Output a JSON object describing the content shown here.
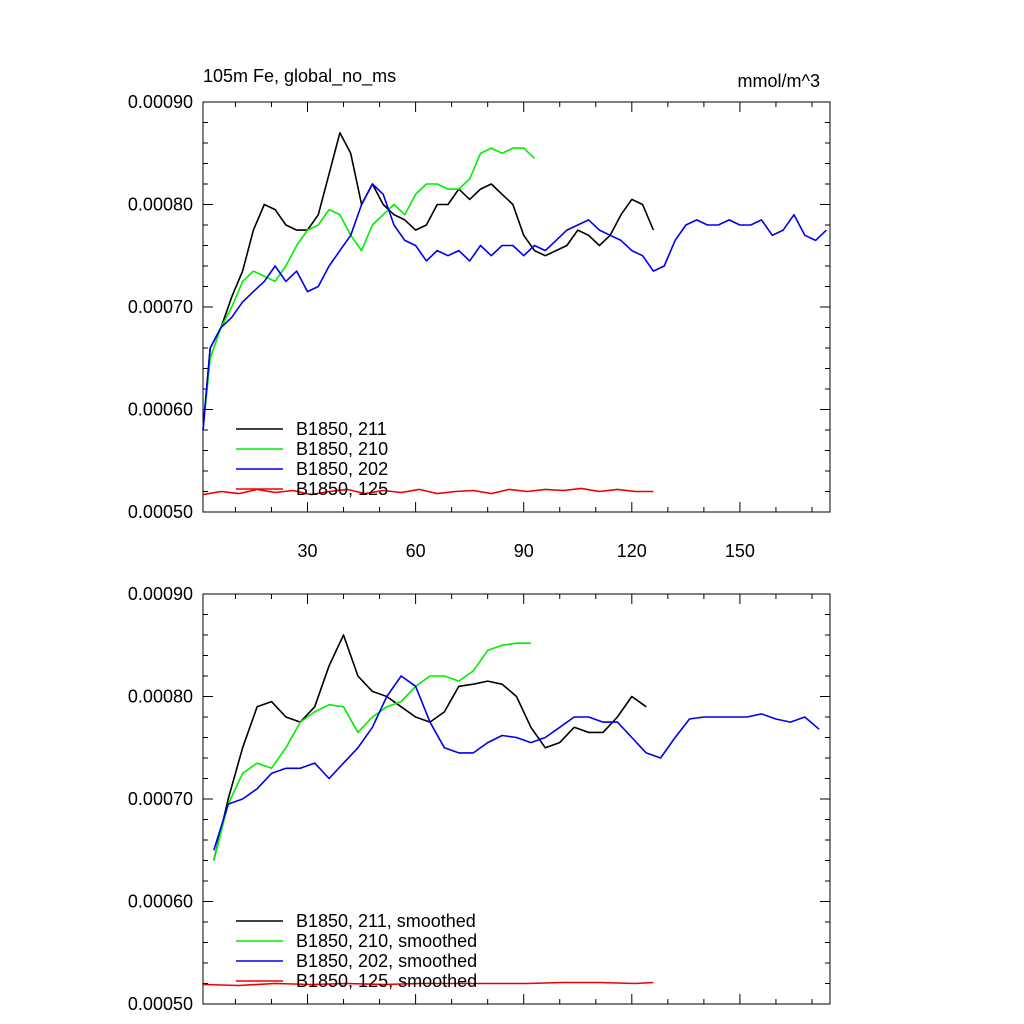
{
  "chart_data": [
    {
      "type": "line",
      "title": "105m Fe, global_no_ms",
      "units_label": "mmol/m^3",
      "xlim": [
        1,
        175
      ],
      "ylim": [
        0.0005,
        0.0009
      ],
      "y_ticks": [
        "0.00050",
        "0.00060",
        "0.00070",
        "0.00080",
        "0.00090"
      ],
      "x_ticks": [
        "30",
        "60",
        "90",
        "120",
        "150"
      ],
      "legend_position": "bottom-left",
      "series": [
        {
          "name": "B1850, 211",
          "color": "#000000",
          "x": [
            1,
            3,
            6,
            9,
            12,
            15,
            18,
            21,
            24,
            27,
            30,
            33,
            36,
            39,
            42,
            45,
            48,
            51,
            54,
            57,
            60,
            63,
            66,
            69,
            72,
            75,
            78,
            81,
            84,
            87,
            90,
            93,
            96,
            99,
            102,
            105,
            108,
            111,
            114,
            117,
            120,
            123,
            126
          ],
          "y": [
            0.00058,
            0.00066,
            0.00068,
            0.00071,
            0.000735,
            0.000775,
            0.0008,
            0.000795,
            0.00078,
            0.000775,
            0.000775,
            0.00079,
            0.00083,
            0.00087,
            0.00085,
            0.0008,
            0.00082,
            0.0008,
            0.00079,
            0.000785,
            0.000775,
            0.00078,
            0.0008,
            0.0008,
            0.000815,
            0.000805,
            0.000815,
            0.00082,
            0.00081,
            0.0008,
            0.00077,
            0.000755,
            0.00075,
            0.000755,
            0.00076,
            0.000775,
            0.00077,
            0.00076,
            0.00077,
            0.00079,
            0.000805,
            0.0008,
            0.000775
          ]
        },
        {
          "name": "B1850, 210",
          "color": "#00ee00",
          "x": [
            1,
            3,
            6,
            9,
            12,
            15,
            18,
            21,
            24,
            27,
            30,
            33,
            36,
            39,
            42,
            45,
            48,
            51,
            54,
            57,
            60,
            63,
            66,
            69,
            72,
            75,
            78,
            81,
            84,
            87,
            90,
            93
          ],
          "y": [
            0.00058,
            0.00065,
            0.00068,
            0.0007,
            0.000725,
            0.000735,
            0.00073,
            0.000725,
            0.00074,
            0.00076,
            0.000775,
            0.00078,
            0.000795,
            0.00079,
            0.00077,
            0.000755,
            0.00078,
            0.00079,
            0.0008,
            0.00079,
            0.00081,
            0.00082,
            0.00082,
            0.000815,
            0.000815,
            0.000825,
            0.00085,
            0.000855,
            0.00085,
            0.000855,
            0.000855,
            0.000845
          ]
        },
        {
          "name": "B1850, 202",
          "color": "#0000ee",
          "x": [
            1,
            3,
            6,
            9,
            12,
            15,
            18,
            21,
            24,
            27,
            30,
            33,
            36,
            39,
            42,
            45,
            48,
            51,
            54,
            57,
            60,
            63,
            66,
            69,
            72,
            75,
            78,
            81,
            84,
            87,
            90,
            93,
            96,
            99,
            102,
            105,
            108,
            111,
            114,
            117,
            120,
            123,
            126,
            129,
            132,
            135,
            138,
            141,
            144,
            147,
            150,
            153,
            156,
            159,
            162,
            165,
            168,
            171,
            174
          ],
          "y": [
            0.00058,
            0.00066,
            0.00068,
            0.00069,
            0.000705,
            0.000715,
            0.000725,
            0.00074,
            0.000725,
            0.000735,
            0.000715,
            0.00072,
            0.00074,
            0.000755,
            0.00077,
            0.0008,
            0.00082,
            0.00081,
            0.00078,
            0.000765,
            0.00076,
            0.000745,
            0.000755,
            0.00075,
            0.000755,
            0.000745,
            0.00076,
            0.00075,
            0.00076,
            0.00076,
            0.00075,
            0.00076,
            0.000755,
            0.000765,
            0.000775,
            0.00078,
            0.000785,
            0.000775,
            0.00077,
            0.000765,
            0.000755,
            0.00075,
            0.000735,
            0.00074,
            0.000765,
            0.00078,
            0.000785,
            0.00078,
            0.00078,
            0.000785,
            0.00078,
            0.00078,
            0.000785,
            0.00077,
            0.000775,
            0.00079,
            0.00077,
            0.000765,
            0.000775
          ]
        },
        {
          "name": "B1850, 125",
          "color": "#ee0000",
          "x": [
            1,
            6,
            11,
            16,
            21,
            26,
            31,
            36,
            41,
            46,
            51,
            56,
            61,
            66,
            71,
            76,
            81,
            86,
            91,
            96,
            101,
            106,
            111,
            116,
            121,
            126
          ],
          "y": [
            0.000517,
            0.00052,
            0.000518,
            0.000522,
            0.000519,
            0.000521,
            0.000517,
            0.00052,
            0.000522,
            0.000518,
            0.000521,
            0.000519,
            0.000522,
            0.000518,
            0.00052,
            0.000521,
            0.000518,
            0.000522,
            0.00052,
            0.000522,
            0.000521,
            0.000523,
            0.00052,
            0.000522,
            0.00052,
            0.00052
          ]
        }
      ]
    },
    {
      "type": "line",
      "title": "",
      "xlim": [
        1,
        175
      ],
      "ylim": [
        0.0005,
        0.0009
      ],
      "y_ticks": [
        "0.00050",
        "0.00060",
        "0.00070",
        "0.00080",
        "0.00090"
      ],
      "legend_position": "bottom-left",
      "series": [
        {
          "name": "B1850, 211, smoothed",
          "color": "#000000",
          "x": [
            4,
            8,
            12,
            16,
            20,
            24,
            28,
            32,
            36,
            40,
            44,
            48,
            52,
            56,
            60,
            64,
            68,
            72,
            76,
            80,
            84,
            88,
            92,
            96,
            100,
            104,
            108,
            112,
            116,
            120,
            124
          ],
          "y": [
            0.00064,
            0.0007,
            0.00075,
            0.00079,
            0.000795,
            0.00078,
            0.000775,
            0.00079,
            0.00083,
            0.00086,
            0.00082,
            0.000805,
            0.0008,
            0.00079,
            0.00078,
            0.000775,
            0.000785,
            0.00081,
            0.000812,
            0.000815,
            0.000812,
            0.0008,
            0.00077,
            0.00075,
            0.000755,
            0.00077,
            0.000765,
            0.000765,
            0.00078,
            0.0008,
            0.00079
          ]
        },
        {
          "name": "B1850, 210, smoothed",
          "color": "#00ee00",
          "x": [
            4,
            8,
            12,
            16,
            20,
            24,
            28,
            32,
            36,
            40,
            44,
            48,
            52,
            56,
            60,
            64,
            68,
            72,
            76,
            80,
            84,
            88,
            92
          ],
          "y": [
            0.00064,
            0.000695,
            0.000725,
            0.000735,
            0.00073,
            0.00075,
            0.000775,
            0.000785,
            0.000792,
            0.00079,
            0.000765,
            0.00078,
            0.00079,
            0.000795,
            0.00081,
            0.00082,
            0.00082,
            0.000815,
            0.000825,
            0.000845,
            0.00085,
            0.000852,
            0.000852
          ]
        },
        {
          "name": "B1850, 202, smoothed",
          "color": "#0000ee",
          "x": [
            4,
            8,
            12,
            16,
            20,
            24,
            28,
            32,
            36,
            40,
            44,
            48,
            52,
            56,
            60,
            64,
            68,
            72,
            76,
            80,
            84,
            88,
            92,
            96,
            100,
            104,
            108,
            112,
            116,
            120,
            124,
            128,
            132,
            136,
            140,
            144,
            148,
            152,
            156,
            160,
            164,
            168,
            172
          ],
          "y": [
            0.00065,
            0.000695,
            0.0007,
            0.00071,
            0.000725,
            0.00073,
            0.00073,
            0.000735,
            0.00072,
            0.000735,
            0.00075,
            0.00077,
            0.0008,
            0.00082,
            0.00081,
            0.000775,
            0.00075,
            0.000745,
            0.000745,
            0.000755,
            0.000762,
            0.00076,
            0.000755,
            0.00076,
            0.00077,
            0.00078,
            0.00078,
            0.000775,
            0.000775,
            0.00076,
            0.000745,
            0.00074,
            0.00076,
            0.000778,
            0.00078,
            0.00078,
            0.00078,
            0.00078,
            0.000783,
            0.000778,
            0.000775,
            0.00078,
            0.000768
          ]
        },
        {
          "name": "B1850, 125, smoothed",
          "color": "#ee0000",
          "x": [
            1,
            11,
            21,
            31,
            41,
            51,
            61,
            71,
            81,
            91,
            101,
            111,
            121,
            126
          ],
          "y": [
            0.000519,
            0.000518,
            0.00052,
            0.000519,
            0.00052,
            0.000519,
            0.00052,
            0.00052,
            0.00052,
            0.00052,
            0.000521,
            0.000521,
            0.00052,
            0.000521
          ]
        }
      ]
    }
  ]
}
